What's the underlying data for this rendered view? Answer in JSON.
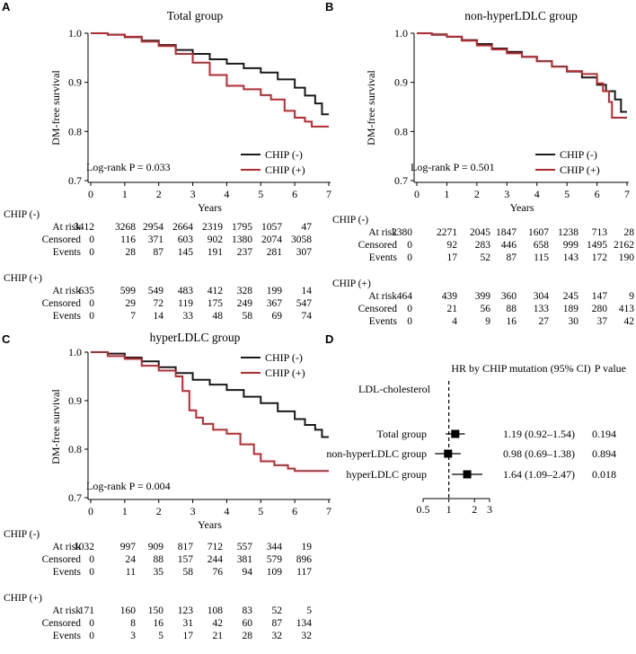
{
  "colors": {
    "neg": "#1a1a1a",
    "pos": "#c1272d"
  },
  "chart_data": [
    {
      "panel": "A",
      "type": "line",
      "title": "Total group",
      "xlabel": "Years",
      "ylabel": "DM-free survival",
      "xlim": [
        0,
        7
      ],
      "ylim": [
        0.7,
        1.0
      ],
      "xticks": [
        "0",
        "1",
        "2",
        "3",
        "4",
        "5",
        "6",
        "7"
      ],
      "yticks": [
        "0.7",
        "0.8",
        "0.9",
        "1.0"
      ],
      "pvalue": "Log-rank P = 0.033",
      "legend": [
        "CHIP (-)",
        "CHIP (+)"
      ],
      "series": [
        {
          "name": "CHIP (-)",
          "x": [
            0,
            0.5,
            1,
            1.5,
            2,
            2.5,
            3,
            3.5,
            4,
            4.5,
            5,
            5.5,
            6,
            6.3,
            6.6,
            6.8,
            6.8,
            7
          ],
          "y": [
            1.0,
            0.997,
            0.992,
            0.985,
            0.976,
            0.966,
            0.958,
            0.947,
            0.938,
            0.929,
            0.92,
            0.906,
            0.889,
            0.873,
            0.857,
            0.845,
            0.835,
            0.835
          ]
        },
        {
          "name": "CHIP (+)",
          "x": [
            0,
            0.5,
            1,
            1.5,
            2,
            2.5,
            3,
            3.5,
            4,
            4.5,
            5,
            5.3,
            5.7,
            6,
            6.3,
            6.5,
            6.5,
            7
          ],
          "y": [
            1.0,
            0.997,
            0.993,
            0.983,
            0.974,
            0.958,
            0.94,
            0.915,
            0.893,
            0.886,
            0.874,
            0.865,
            0.842,
            0.828,
            0.82,
            0.812,
            0.81,
            0.81
          ]
        }
      ],
      "risk": {
        "groups": [
          {
            "label": "CHIP (-)",
            "rows": [
              {
                "label": "At risk",
                "values": [
                  "3412",
                  "3268",
                  "2954",
                  "2664",
                  "2319",
                  "1795",
                  "1057",
                  "47"
                ]
              },
              {
                "label": "Censored",
                "values": [
                  "0",
                  "116",
                  "371",
                  "603",
                  "902",
                  "1380",
                  "2074",
                  "3058"
                ]
              },
              {
                "label": "Events",
                "values": [
                  "0",
                  "28",
                  "87",
                  "145",
                  "191",
                  "237",
                  "281",
                  "307"
                ]
              }
            ]
          },
          {
            "label": "CHIP (+)",
            "rows": [
              {
                "label": "At risk",
                "values": [
                  "635",
                  "599",
                  "549",
                  "483",
                  "412",
                  "328",
                  "199",
                  "14"
                ]
              },
              {
                "label": "Censored",
                "values": [
                  "0",
                  "29",
                  "72",
                  "119",
                  "175",
                  "249",
                  "367",
                  "547"
                ]
              },
              {
                "label": "Events",
                "values": [
                  "0",
                  "7",
                  "14",
                  "33",
                  "48",
                  "58",
                  "69",
                  "74"
                ]
              }
            ]
          }
        ]
      }
    },
    {
      "panel": "B",
      "type": "line",
      "title": "non-hyperLDLC group",
      "xlabel": "Years",
      "ylabel": "DM-free survival",
      "xlim": [
        0,
        7
      ],
      "ylim": [
        0.7,
        1.0
      ],
      "xticks": [
        "0",
        "1",
        "2",
        "3",
        "4",
        "5",
        "6",
        "7"
      ],
      "yticks": [
        "0.7",
        "0.8",
        "0.9",
        "1.0"
      ],
      "pvalue": "Log-rank P = 0.501",
      "legend": [
        "CHIP (-)",
        "CHIP (+)"
      ],
      "series": [
        {
          "name": "CHIP (-)",
          "x": [
            0,
            0.5,
            1,
            1.5,
            2,
            2.5,
            3,
            3.5,
            4,
            4.5,
            5,
            5.5,
            6,
            6.3,
            6.6,
            6.8,
            6.8,
            7
          ],
          "y": [
            1.0,
            0.997,
            0.993,
            0.986,
            0.978,
            0.969,
            0.962,
            0.952,
            0.943,
            0.932,
            0.922,
            0.91,
            0.895,
            0.882,
            0.865,
            0.852,
            0.84,
            0.84
          ]
        },
        {
          "name": "CHIP (+)",
          "x": [
            0,
            0.5,
            1,
            1.5,
            2,
            2.5,
            3,
            3.5,
            4,
            4.5,
            5,
            5.5,
            6,
            6.2,
            6.4,
            6.5,
            6.5,
            7
          ],
          "y": [
            1.0,
            0.998,
            0.993,
            0.985,
            0.975,
            0.967,
            0.959,
            0.952,
            0.943,
            0.932,
            0.923,
            0.917,
            0.898,
            0.882,
            0.86,
            0.84,
            0.828,
            0.828
          ]
        }
      ],
      "risk": {
        "groups": [
          {
            "label": "CHIP (-)",
            "rows": [
              {
                "label": "At risk",
                "values": [
                  "2380",
                  "2271",
                  "2045",
                  "1847",
                  "1607",
                  "1238",
                  "713",
                  "28"
                ]
              },
              {
                "label": "Censored",
                "values": [
                  "0",
                  "92",
                  "283",
                  "446",
                  "658",
                  "999",
                  "1495",
                  "2162"
                ]
              },
              {
                "label": "Events",
                "values": [
                  "0",
                  "17",
                  "52",
                  "87",
                  "115",
                  "143",
                  "172",
                  "190"
                ]
              }
            ]
          },
          {
            "label": "CHIP (+)",
            "rows": [
              {
                "label": "At risk",
                "values": [
                  "464",
                  "439",
                  "399",
                  "360",
                  "304",
                  "245",
                  "147",
                  "9"
                ]
              },
              {
                "label": "Censored",
                "values": [
                  "0",
                  "21",
                  "56",
                  "88",
                  "133",
                  "189",
                  "280",
                  "413"
                ]
              },
              {
                "label": "Events",
                "values": [
                  "0",
                  "4",
                  "9",
                  "16",
                  "27",
                  "30",
                  "37",
                  "42"
                ]
              }
            ]
          }
        ]
      }
    },
    {
      "panel": "C",
      "type": "line",
      "title": "hyperLDLC group",
      "xlabel": "Years",
      "ylabel": "DM-free survival",
      "xlim": [
        0,
        7
      ],
      "ylim": [
        0.7,
        1.0
      ],
      "xticks": [
        "0",
        "1",
        "2",
        "3",
        "4",
        "5",
        "6",
        "7"
      ],
      "yticks": [
        "0.7",
        "0.8",
        "0.9",
        "1.0"
      ],
      "pvalue": "Log-rank P = 0.004",
      "legend": [
        "CHIP (-)",
        "CHIP (+)"
      ],
      "series": [
        {
          "name": "CHIP (-)",
          "x": [
            0,
            0.5,
            1,
            1.5,
            2,
            2.5,
            3,
            3.5,
            4,
            4.5,
            5,
            5.5,
            6,
            6.3,
            6.6,
            6.8,
            7
          ],
          "y": [
            1.0,
            0.997,
            0.989,
            0.981,
            0.969,
            0.957,
            0.943,
            0.933,
            0.922,
            0.908,
            0.895,
            0.878,
            0.862,
            0.85,
            0.84,
            0.825,
            0.825
          ]
        },
        {
          "name": "CHIP (+)",
          "x": [
            0,
            0.5,
            1,
            1.5,
            2,
            2.5,
            2.7,
            2.9,
            3.1,
            3.3,
            3.6,
            4,
            4.4,
            4.8,
            5,
            5.4,
            5.8,
            6,
            7
          ],
          "y": [
            1.0,
            0.992,
            0.986,
            0.972,
            0.962,
            0.95,
            0.92,
            0.88,
            0.865,
            0.852,
            0.84,
            0.832,
            0.81,
            0.79,
            0.775,
            0.767,
            0.76,
            0.755,
            0.755
          ]
        }
      ],
      "risk": {
        "groups": [
          {
            "label": "CHIP (-)",
            "rows": [
              {
                "label": "At risk",
                "values": [
                  "1032",
                  "997",
                  "909",
                  "817",
                  "712",
                  "557",
                  "344",
                  "19"
                ]
              },
              {
                "label": "Censored",
                "values": [
                  "0",
                  "24",
                  "88",
                  "157",
                  "244",
                  "381",
                  "579",
                  "896"
                ]
              },
              {
                "label": "Events",
                "values": [
                  "0",
                  "11",
                  "35",
                  "58",
                  "76",
                  "94",
                  "109",
                  "117"
                ]
              }
            ]
          },
          {
            "label": "CHIP (+)",
            "rows": [
              {
                "label": "At risk",
                "values": [
                  "171",
                  "160",
                  "150",
                  "123",
                  "108",
                  "83",
                  "52",
                  "5"
                ]
              },
              {
                "label": "Censored",
                "values": [
                  "0",
                  "8",
                  "16",
                  "31",
                  "42",
                  "60",
                  "87",
                  "134"
                ]
              },
              {
                "label": "Events",
                "values": [
                  "0",
                  "3",
                  "5",
                  "17",
                  "21",
                  "28",
                  "32",
                  "32"
                ]
              }
            ]
          }
        ]
      }
    },
    {
      "panel": "D",
      "type": "forest",
      "header": "HR by CHIP mutation (95% CI)",
      "pheader": "P value",
      "subheader": "LDL-cholesterol",
      "xticks": [
        0.5,
        1,
        2,
        3
      ],
      "xticklabels": [
        "0.5",
        "1",
        "2",
        "3"
      ],
      "ref": 1,
      "rows": [
        {
          "label": "Total group",
          "hr": 1.19,
          "lo": 0.92,
          "hi": 1.54,
          "text": "1.19 (0.92–1.54)",
          "p": "0.194"
        },
        {
          "label": "non-hyperLDLC group",
          "hr": 0.98,
          "lo": 0.69,
          "hi": 1.38,
          "text": "0.98 (0.69–1.38)",
          "p": "0.894"
        },
        {
          "label": "hyperLDLC group",
          "hr": 1.64,
          "lo": 1.09,
          "hi": 2.47,
          "text": "1.64 (1.09–2.47)",
          "p": "0.018"
        }
      ]
    }
  ]
}
